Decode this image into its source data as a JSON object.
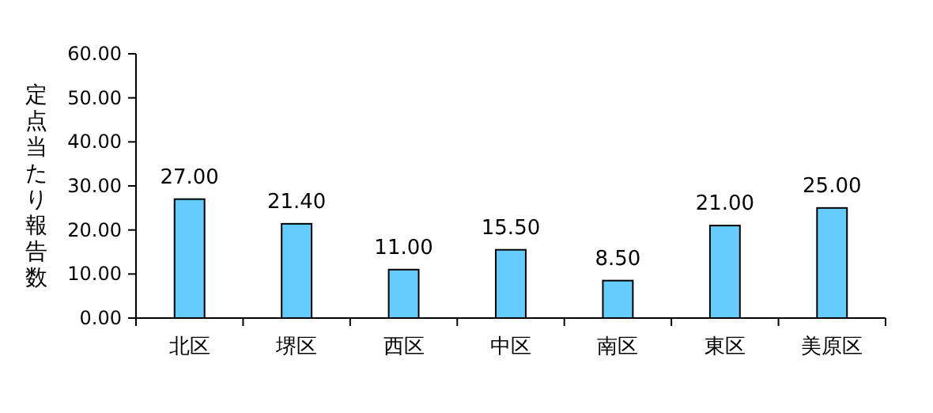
{
  "chart_data": {
    "type": "bar",
    "ylabel": "定点当たり報告数",
    "categories": [
      "北区",
      "堺区",
      "西区",
      "中区",
      "南区",
      "東区",
      "美原区"
    ],
    "values": [
      27,
      21.4,
      11,
      15.5,
      8.5,
      21,
      25
    ],
    "value_labels": [
      "27.00",
      "21.40",
      "11.00",
      "15.50",
      "8.50",
      "21.00",
      "25.00"
    ],
    "color": "#66ccff",
    "ylim": [
      0,
      60
    ],
    "yticks": [
      {
        "value": 0,
        "label": "0.00"
      },
      {
        "value": 10,
        "label": "10.00"
      },
      {
        "value": 20,
        "label": "20.00"
      },
      {
        "value": 30,
        "label": "30.00"
      },
      {
        "value": 40,
        "label": "40.00"
      },
      {
        "value": 50,
        "label": "50.00"
      },
      {
        "value": 60,
        "label": "60.00"
      }
    ]
  }
}
